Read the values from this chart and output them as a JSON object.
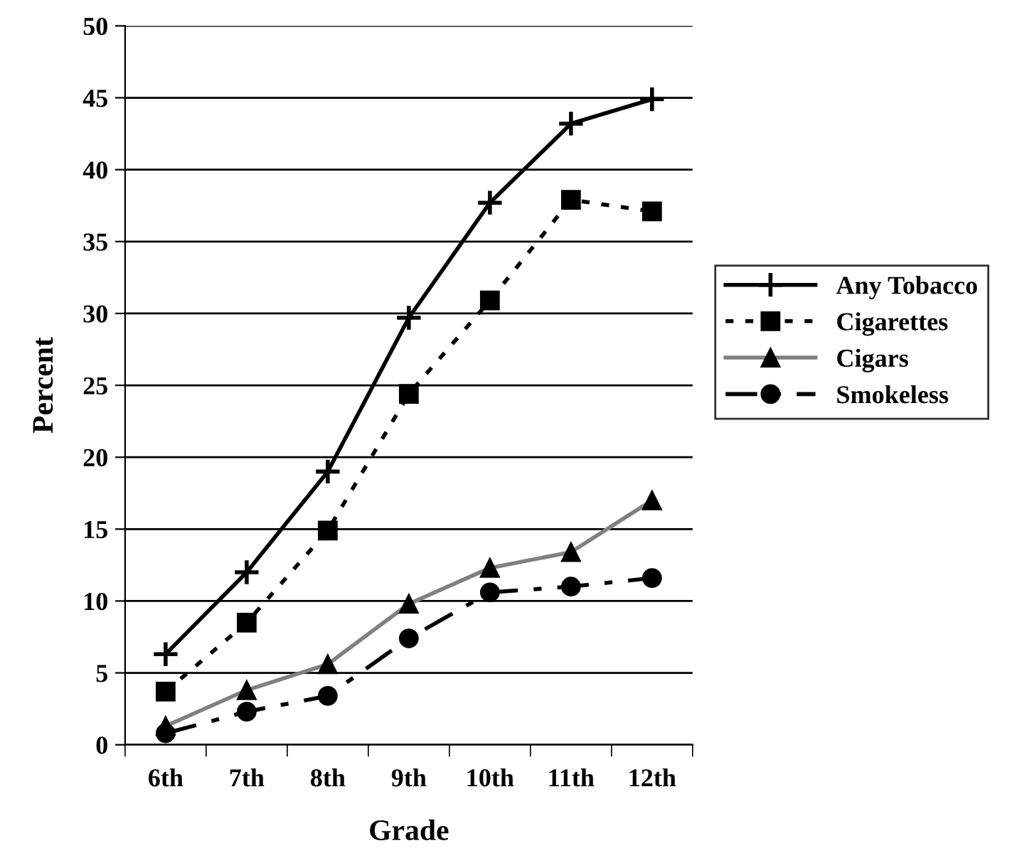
{
  "chart_data": {
    "type": "line",
    "xlabel": "Grade",
    "ylabel": "Percent",
    "categories": [
      "6th",
      "7th",
      "8th",
      "9th",
      "10th",
      "11th",
      "12th"
    ],
    "ylim": [
      0,
      50
    ],
    "yticks": [
      0,
      5,
      10,
      15,
      20,
      25,
      30,
      35,
      40,
      45,
      50
    ],
    "grid": "y",
    "legend": "right",
    "series": [
      {
        "name": "Any Tobacco",
        "color": "#000000",
        "marker": "cross",
        "line_style": "solid",
        "values": [
          6.3,
          12.0,
          19.0,
          29.7,
          37.7,
          43.2,
          44.9
        ]
      },
      {
        "name": "Cigarettes",
        "color": "#000000",
        "marker": "square",
        "line_style": "dotted",
        "values": [
          3.7,
          8.5,
          14.9,
          24.4,
          30.9,
          37.9,
          37.1
        ]
      },
      {
        "name": "Cigars",
        "color": "#808080",
        "marker": "triangle",
        "line_style": "solid",
        "values": [
          1.3,
          3.8,
          5.6,
          9.8,
          12.3,
          13.4,
          17.0
        ]
      },
      {
        "name": "Smokeless",
        "color": "#000000",
        "marker": "circle",
        "line_style": "dashdot",
        "values": [
          0.8,
          2.3,
          3.4,
          7.4,
          10.6,
          11.0,
          11.6
        ]
      }
    ]
  }
}
